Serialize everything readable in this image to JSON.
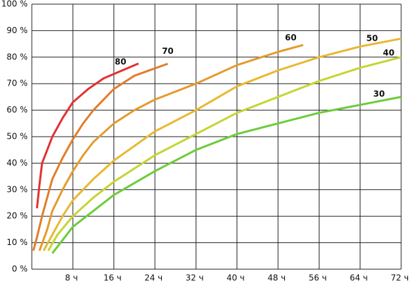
{
  "chart_data": {
    "type": "line",
    "xlim": [
      0,
      72
    ],
    "ylim": [
      0,
      100
    ],
    "xticks": [
      {
        "value": 8,
        "label": "8 ч"
      },
      {
        "value": 16,
        "label": "16 ч"
      },
      {
        "value": 24,
        "label": "24 ч"
      },
      {
        "value": 32,
        "label": "32 ч"
      },
      {
        "value": 40,
        "label": "40 ч"
      },
      {
        "value": 48,
        "label": "48 ч"
      },
      {
        "value": 56,
        "label": "56 ч"
      },
      {
        "value": 64,
        "label": "64 ч"
      },
      {
        "value": 72,
        "label": "72 ч"
      }
    ],
    "yticks": [
      {
        "value": 0,
        "label": "0 %"
      },
      {
        "value": 10,
        "label": "10 %"
      },
      {
        "value": 20,
        "label": "20 %"
      },
      {
        "value": 30,
        "label": "30 %"
      },
      {
        "value": 40,
        "label": "40 %"
      },
      {
        "value": 50,
        "label": "50 %"
      },
      {
        "value": 60,
        "label": "60 %"
      },
      {
        "value": 70,
        "label": "70 %"
      },
      {
        "value": 80,
        "label": "80 %"
      },
      {
        "value": 90,
        "label": "90 %"
      },
      {
        "value": 100,
        "label": "100 %"
      }
    ],
    "grid": true,
    "series": [
      {
        "name": "80",
        "color": "#e23232",
        "x": [
          1,
          1.5,
          2,
          4,
          6,
          8,
          11,
          14,
          20.8
        ],
        "values": [
          23,
          32,
          40,
          50,
          57,
          63,
          68,
          72,
          77.6
        ]
      },
      {
        "name": "70",
        "color": "#e27d2a",
        "x": [
          0.3,
          1,
          2,
          3,
          4,
          6,
          8,
          10,
          12,
          16,
          20,
          26.5
        ],
        "values": [
          7,
          12,
          20,
          27,
          34,
          42,
          49,
          55,
          60,
          68,
          73,
          77.5
        ]
      },
      {
        "name": "60",
        "color": "#e59a2c",
        "x": [
          1.5,
          3,
          4,
          6,
          8,
          10,
          12,
          16,
          20,
          24,
          32,
          40,
          48,
          52.9
        ],
        "values": [
          7,
          15,
          22,
          30,
          37,
          43,
          48,
          55,
          60,
          64,
          70,
          77,
          82,
          84.6
        ]
      },
      {
        "name": "50",
        "color": "#e8b830",
        "x": [
          2.3,
          4,
          6,
          8,
          12,
          16,
          24,
          32,
          40,
          48,
          56,
          64,
          72
        ],
        "values": [
          7,
          13,
          20,
          26,
          34,
          41,
          52,
          60,
          69,
          75,
          80,
          84,
          87
        ]
      },
      {
        "name": "40",
        "color": "#c5d530",
        "x": [
          3.2,
          5,
          8,
          12,
          16,
          24,
          32,
          40,
          48,
          56,
          64,
          72
        ],
        "values": [
          7,
          13,
          20,
          27,
          33,
          43,
          51,
          59,
          65,
          71,
          76,
          80
        ]
      },
      {
        "name": "30",
        "color": "#6ccc3a",
        "x": [
          4,
          6,
          8,
          12,
          16,
          24,
          32,
          40,
          48,
          56,
          64,
          72
        ],
        "values": [
          6,
          11,
          16,
          22,
          28,
          37,
          45,
          51,
          55,
          59,
          62,
          65
        ]
      }
    ]
  }
}
